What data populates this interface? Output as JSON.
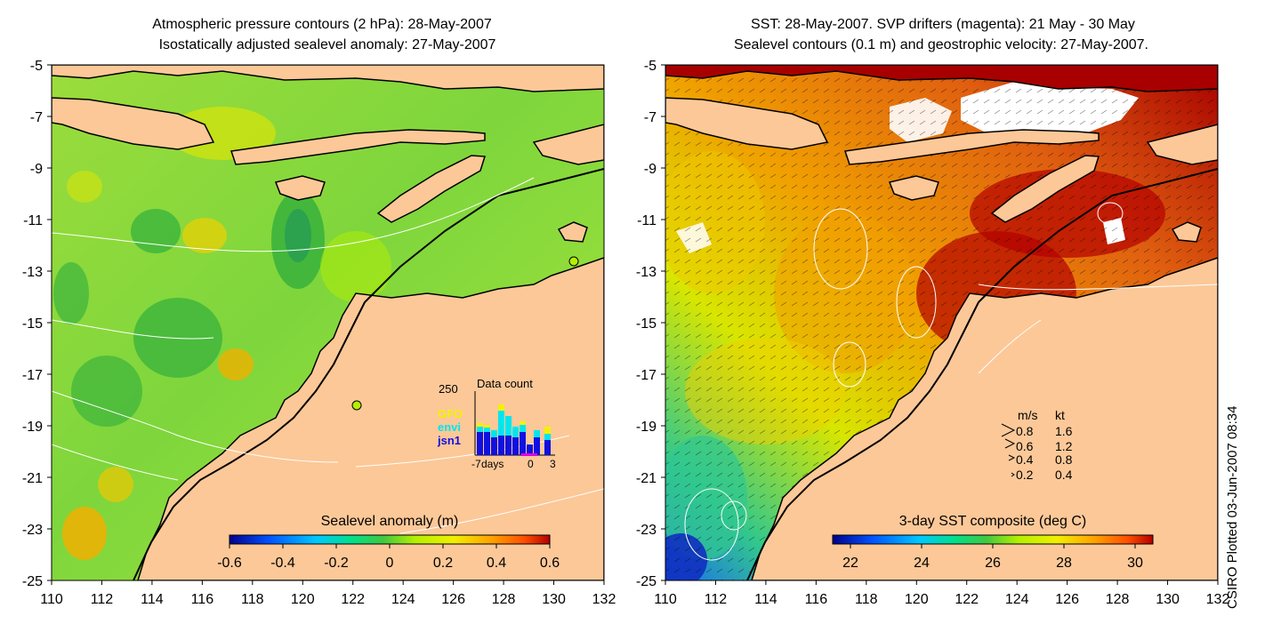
{
  "left_panel": {
    "title_line1": "Atmospheric pressure contours (2 hPa): 28-May-2007",
    "title_line2": "Isostatically adjusted sealevel anomaly: 27-May-2007",
    "colorbar": {
      "label": "Sealevel anomaly (m)",
      "ticks": [
        "-0.6",
        "-0.4",
        "-0.2",
        "0",
        "0.2",
        "0.4",
        "0.6"
      ],
      "range": [
        -0.6,
        0.6
      ]
    },
    "inset": {
      "title": "Data count",
      "ymax_label": "250",
      "legend": [
        {
          "label": "GFO",
          "color": "#f2f200"
        },
        {
          "label": "envi",
          "color": "#00e5ee"
        },
        {
          "label": "jsn1",
          "color": "#1010e0"
        }
      ],
      "xlabels": [
        "-7",
        "days",
        "0",
        "3"
      ]
    }
  },
  "right_panel": {
    "title_line1": "SST: 28-May-2007. SVP drifters (magenta): 21 May - 30 May",
    "title_line2": "Sealevel contours (0.1 m) and geostrophic velocity: 27-May-2007.",
    "colorbar": {
      "label": "3-day SST composite (deg C)",
      "ticks": [
        "22",
        "24",
        "26",
        "28",
        "30"
      ],
      "range": [
        21.5,
        30.5
      ]
    },
    "velocity_legend": {
      "header_ms": "m/s",
      "header_kt": "kt",
      "rows": [
        {
          "ms": "0.8",
          "kt": "1.6"
        },
        {
          "ms": "0.6",
          "kt": "1.2"
        },
        {
          "ms": "0.4",
          "kt": "0.8"
        },
        {
          "ms": "0.2",
          "kt": "0.4"
        }
      ]
    }
  },
  "axes": {
    "x_ticks": [
      "110",
      "112",
      "114",
      "116",
      "118",
      "120",
      "122",
      "124",
      "126",
      "128",
      "130",
      "132"
    ],
    "y_ticks": [
      "-5",
      "-7",
      "-9",
      "-11",
      "-13",
      "-15",
      "-17",
      "-19",
      "-21",
      "-23",
      "-25"
    ],
    "lon_range": [
      110,
      132
    ],
    "lat_range": [
      -25,
      -5
    ]
  },
  "side_label": "CSIRO Plotted 03-Jun-2007 08:34",
  "colors": {
    "land": "#fcc898",
    "coast": "#000000",
    "sla_ramp": [
      "#00008c",
      "#0050ff",
      "#00c8ff",
      "#00e08c",
      "#40c840",
      "#b4f000",
      "#f0f000",
      "#ffa000",
      "#ff5000",
      "#b40000"
    ],
    "sst_ramp": [
      "#00008c",
      "#0050ff",
      "#00c8ff",
      "#00e08c",
      "#40c840",
      "#b4f000",
      "#f0f000",
      "#ffa000",
      "#ff5000",
      "#b40000"
    ]
  }
}
